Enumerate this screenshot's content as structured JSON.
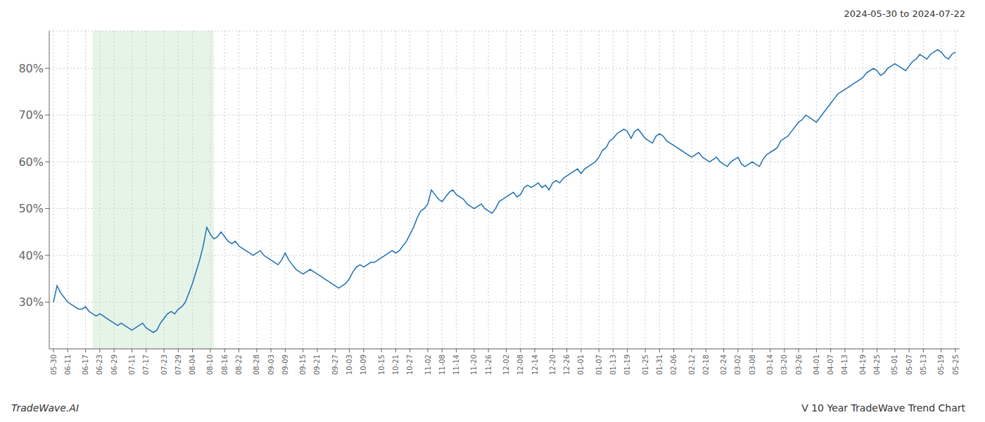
{
  "chart_data": {
    "type": "line",
    "title": "V 10 Year TradeWave Trend Chart",
    "subtitle": "2024-05-30 to 2024-07-22",
    "annotations": [
      "TradeWave.AI"
    ],
    "color": "#2070b4",
    "grid": true,
    "ylim": [
      20,
      88
    ],
    "yticks": [
      {
        "value": 30,
        "label": "30%"
      },
      {
        "value": 40,
        "label": "40%"
      },
      {
        "value": 50,
        "label": "50%"
      },
      {
        "value": 60,
        "label": "60%"
      },
      {
        "value": 70,
        "label": "70%"
      },
      {
        "value": 80,
        "label": "80%"
      }
    ],
    "shade": {
      "from": 11,
      "to": 45,
      "color": "#c8e6c9"
    },
    "categories": [
      "05-30",
      null,
      null,
      null,
      "06-11",
      null,
      null,
      null,
      null,
      "06-17",
      null,
      null,
      null,
      "06-23",
      null,
      null,
      null,
      "06-29",
      null,
      null,
      null,
      null,
      "07-11",
      null,
      null,
      null,
      "07-17",
      null,
      null,
      null,
      null,
      "07-23",
      null,
      null,
      null,
      "07-29",
      null,
      null,
      null,
      "08-04",
      null,
      null,
      null,
      null,
      "08-10",
      null,
      null,
      null,
      "08-16",
      null,
      null,
      null,
      "08-22",
      null,
      null,
      null,
      null,
      "08-28",
      null,
      null,
      null,
      "09-03",
      null,
      null,
      null,
      "09-09",
      null,
      null,
      null,
      null,
      "09-15",
      null,
      null,
      null,
      "09-21",
      null,
      null,
      null,
      null,
      "09-27",
      null,
      null,
      null,
      "10-03",
      null,
      null,
      null,
      "10-09",
      null,
      null,
      null,
      null,
      "10-15",
      null,
      null,
      null,
      "10-21",
      null,
      null,
      null,
      "10-27",
      null,
      null,
      null,
      null,
      "11-02",
      null,
      null,
      null,
      "11-08",
      null,
      null,
      null,
      "11-14",
      null,
      null,
      null,
      null,
      "11-20",
      null,
      null,
      null,
      "11-26",
      null,
      null,
      null,
      null,
      "12-02",
      null,
      null,
      null,
      "12-08",
      null,
      null,
      null,
      "12-14",
      null,
      null,
      null,
      null,
      "12-20",
      null,
      null,
      null,
      "12-26",
      null,
      null,
      null,
      "01-01",
      null,
      null,
      null,
      null,
      "01-07",
      null,
      null,
      null,
      "01-13",
      null,
      null,
      null,
      "01-19",
      null,
      null,
      null,
      null,
      "01-25",
      null,
      null,
      null,
      "01-31",
      null,
      null,
      null,
      "02-06",
      null,
      null,
      null,
      null,
      "02-12",
      null,
      null,
      null,
      "02-18",
      null,
      null,
      null,
      null,
      "02-24",
      null,
      null,
      null,
      "03-02",
      null,
      null,
      null,
      "03-08",
      null,
      null,
      null,
      null,
      "03-14",
      null,
      null,
      null,
      "03-20",
      null,
      null,
      null,
      "03-26",
      null,
      null,
      null,
      null,
      "04-01",
      null,
      null,
      null,
      "04-07",
      null,
      null,
      null,
      "04-13",
      null,
      null,
      null,
      null,
      "04-19",
      null,
      null,
      null,
      "04-25",
      null,
      null,
      null,
      null,
      "05-01",
      null,
      null,
      null,
      "05-07",
      null,
      null,
      null,
      "05-13",
      null,
      null,
      null,
      null,
      "05-19",
      null,
      null,
      null,
      "05-25"
    ],
    "values": [
      30.0,
      33.5,
      32.0,
      31.0,
      30.0,
      29.5,
      29.0,
      28.5,
      28.5,
      29.0,
      28.0,
      27.5,
      27.0,
      27.5,
      27.0,
      26.5,
      26.0,
      25.5,
      25.0,
      25.5,
      25.0,
      24.5,
      24.0,
      24.5,
      25.0,
      25.5,
      24.5,
      24.0,
      23.5,
      24.0,
      25.5,
      26.5,
      27.5,
      28.0,
      27.5,
      28.5,
      29.0,
      30.0,
      32.0,
      34.0,
      36.5,
      39.0,
      42.0,
      46.0,
      44.5,
      43.5,
      44.0,
      45.0,
      44.0,
      43.0,
      42.5,
      43.0,
      42.0,
      41.5,
      41.0,
      40.5,
      40.0,
      40.5,
      41.0,
      40.0,
      39.5,
      39.0,
      38.5,
      38.0,
      39.0,
      40.5,
      39.0,
      38.0,
      37.0,
      36.5,
      36.0,
      36.5,
      37.0,
      36.5,
      36.0,
      35.5,
      35.0,
      34.5,
      34.0,
      33.5,
      33.0,
      33.5,
      34.0,
      35.0,
      36.5,
      37.5,
      38.0,
      37.5,
      38.0,
      38.5,
      38.5,
      39.0,
      39.5,
      40.0,
      40.5,
      41.0,
      40.5,
      41.0,
      42.0,
      43.0,
      44.5,
      46.0,
      48.0,
      49.5,
      50.0,
      51.0,
      54.0,
      53.0,
      52.0,
      51.5,
      52.5,
      53.5,
      54.0,
      53.0,
      52.5,
      52.0,
      51.0,
      50.5,
      50.0,
      50.5,
      51.0,
      50.0,
      49.5,
      49.0,
      50.0,
      51.5,
      52.0,
      52.5,
      53.0,
      53.5,
      52.5,
      53.0,
      54.5,
      55.0,
      54.5,
      55.0,
      55.5,
      54.5,
      55.0,
      54.0,
      55.5,
      56.0,
      55.5,
      56.5,
      57.0,
      57.5,
      58.0,
      58.5,
      57.5,
      58.5,
      59.0,
      59.5,
      60.0,
      61.0,
      62.5,
      63.0,
      64.5,
      65.0,
      66.0,
      66.5,
      67.0,
      66.5,
      65.0,
      66.5,
      67.0,
      66.0,
      65.0,
      64.5,
      64.0,
      65.5,
      66.0,
      65.5,
      64.5,
      64.0,
      63.5,
      63.0,
      62.5,
      62.0,
      61.5,
      61.0,
      61.5,
      62.0,
      61.0,
      60.5,
      60.0,
      60.5,
      61.0,
      60.0,
      59.5,
      59.0,
      60.0,
      60.5,
      61.0,
      59.5,
      59.0,
      59.5,
      60.0,
      59.5,
      59.0,
      60.5,
      61.5,
      62.0,
      62.5,
      63.0,
      64.5,
      65.0,
      65.5,
      66.5,
      67.5,
      68.5,
      69.0,
      70.0,
      69.5,
      69.0,
      68.5,
      69.5,
      70.5,
      71.5,
      72.5,
      73.5,
      74.5,
      75.0,
      75.5,
      76.0,
      76.5,
      77.0,
      77.5,
      78.0,
      79.0,
      79.5,
      80.0,
      79.5,
      78.5,
      79.0,
      80.0,
      80.5,
      81.0,
      80.5,
      80.0,
      79.5,
      80.5,
      81.5,
      82.0,
      83.0,
      82.5,
      82.0,
      83.0,
      83.5,
      84.0,
      83.5,
      82.5,
      82.0,
      83.0,
      83.5
    ]
  }
}
